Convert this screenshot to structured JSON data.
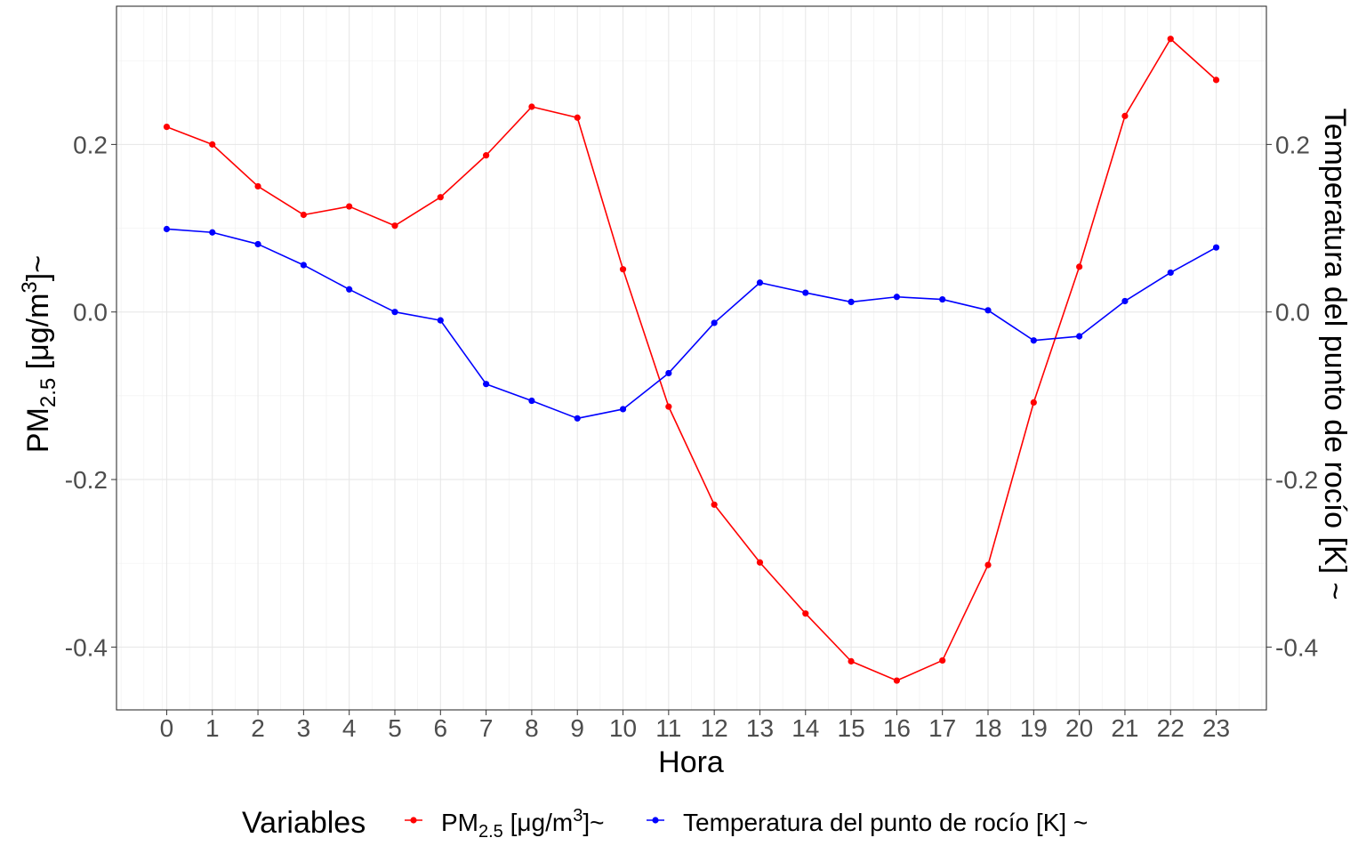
{
  "chart_data": {
    "type": "line",
    "title": "",
    "xlabel": "Hora",
    "ylabel": {
      "main": "PM",
      "sub": "2.5",
      "unit_open": " [μg/m",
      "sup": "3",
      "unit_close": "]~"
    },
    "y2label": "Temperatura del punto de rocío [K] ~",
    "x": [
      0,
      1,
      2,
      3,
      4,
      5,
      6,
      7,
      8,
      9,
      10,
      11,
      12,
      13,
      14,
      15,
      16,
      17,
      18,
      19,
      20,
      21,
      22,
      23
    ],
    "xlim": [
      -1.1,
      24.1
    ],
    "ylim": [
      -0.475,
      0.365
    ],
    "yticks": [
      -0.4,
      -0.2,
      0.0,
      0.2
    ],
    "ytick_labels": [
      "-0.4",
      "-0.2",
      "0.0",
      "0.2"
    ],
    "grid": true,
    "legend": {
      "title": "Variables",
      "position": "bottom",
      "labels": [
        {
          "main": "PM",
          "sub": "2.5",
          "unit_open": " [μg/m",
          "sup": "3",
          "unit_close": "]~"
        },
        {
          "text": "Temperatura del punto de rocío [K] ~"
        }
      ]
    },
    "series": [
      {
        "name": "PM2.5 [μg/m3]~",
        "color": "#ff0000",
        "values": [
          0.221,
          0.2,
          0.15,
          0.116,
          0.126,
          0.103,
          0.137,
          0.187,
          0.245,
          0.232,
          0.051,
          -0.113,
          -0.23,
          -0.299,
          -0.36,
          -0.417,
          -0.44,
          -0.416,
          -0.302,
          -0.108,
          0.054,
          0.234,
          0.326,
          0.277
        ]
      },
      {
        "name": "Temperatura del punto de rocío [K] ~",
        "color": "#0000ff",
        "values": [
          0.099,
          0.095,
          0.081,
          0.056,
          0.027,
          0.0,
          -0.01,
          -0.086,
          -0.106,
          -0.127,
          -0.116,
          -0.073,
          -0.013,
          0.035,
          0.023,
          0.012,
          0.018,
          0.015,
          0.002,
          -0.034,
          -0.029,
          0.013,
          0.047,
          0.077
        ]
      }
    ]
  }
}
